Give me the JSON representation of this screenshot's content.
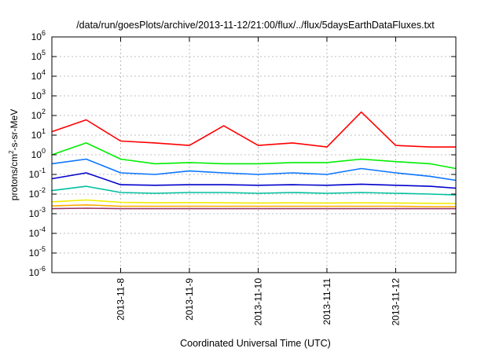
{
  "chart_data": {
    "type": "line",
    "title": "/data/run/goesPlots/archive/2013-11-12/21:00/flux/../flux/5daysEarthDataFluxes.txt",
    "xlabel": "Coordinated Universal Time (UTC)",
    "ylabel": {
      "base": "protons/cm",
      "sup": "2",
      "rest": "-s-sr-MeV"
    },
    "y_scale": "log",
    "ylim": [
      1e-06,
      1000000.0
    ],
    "xlim": [
      "2013-11-07 00:00",
      "2013-11-12 21:00"
    ],
    "grid": true,
    "x_ticks": [
      "2013-11-8",
      "2013-11-9",
      "2013-11-10",
      "2013-11-11",
      "2013-11-12"
    ],
    "y_ticks": [
      {
        "base": "10",
        "exp": "-6"
      },
      {
        "base": "10",
        "exp": "-5"
      },
      {
        "base": "10",
        "exp": "-4"
      },
      {
        "base": "10",
        "exp": "-3"
      },
      {
        "base": "10",
        "exp": "-2"
      },
      {
        "base": "10",
        "exp": "-1"
      },
      {
        "base": "10",
        "exp": "0"
      },
      {
        "base": "10",
        "exp": "1"
      },
      {
        "base": "10",
        "exp": "2"
      },
      {
        "base": "10",
        "exp": "3"
      },
      {
        "base": "10",
        "exp": "4"
      },
      {
        "base": "10",
        "exp": "5"
      },
      {
        "base": "10",
        "exp": "6"
      }
    ],
    "x_dates": [
      "2013-11-07 00:00",
      "2013-11-07 12:00",
      "2013-11-08 00:00",
      "2013-11-08 12:00",
      "2013-11-09 00:00",
      "2013-11-09 12:00",
      "2013-11-10 00:00",
      "2013-11-10 12:00",
      "2013-11-11 00:00",
      "2013-11-11 12:00",
      "2013-11-12 00:00",
      "2013-11-12 12:00",
      "2013-11-12 21:00"
    ],
    "series": [
      {
        "color": "#ff0000",
        "values": [
          15,
          60,
          5,
          4,
          3,
          30,
          3,
          4,
          2.5,
          150,
          3,
          2.5,
          2.5
        ]
      },
      {
        "color": "#00ee00",
        "values": [
          1.0,
          4.0,
          0.6,
          0.35,
          0.4,
          0.35,
          0.35,
          0.4,
          0.4,
          0.6,
          0.45,
          0.35,
          0.2
        ]
      },
      {
        "color": "#0a74ff",
        "values": [
          0.35,
          0.6,
          0.12,
          0.1,
          0.15,
          0.12,
          0.1,
          0.12,
          0.1,
          0.2,
          0.12,
          0.08,
          0.05
        ]
      },
      {
        "color": "#0000cc",
        "values": [
          0.06,
          0.12,
          0.03,
          0.028,
          0.03,
          0.03,
          0.028,
          0.03,
          0.028,
          0.032,
          0.028,
          0.025,
          0.02
        ]
      },
      {
        "color": "#00c0a0",
        "values": [
          0.015,
          0.025,
          0.012,
          0.011,
          0.012,
          0.012,
          0.011,
          0.012,
          0.011,
          0.012,
          0.011,
          0.01,
          0.009
        ]
      },
      {
        "color": "#eeee00",
        "values": [
          0.004,
          0.005,
          0.0038,
          0.0036,
          0.0037,
          0.0036,
          0.0035,
          0.0036,
          0.0035,
          0.0036,
          0.0035,
          0.0034,
          0.0033
        ]
      },
      {
        "color": "#ffaa00",
        "values": [
          0.0025,
          0.0028,
          0.0024,
          0.0024,
          0.0024,
          0.0024,
          0.0024,
          0.0024,
          0.0024,
          0.0024,
          0.0024,
          0.0023,
          0.0023
        ]
      },
      {
        "color": "#993366",
        "values": [
          0.0018,
          0.0019,
          0.0018,
          0.0018,
          0.0018,
          0.0018,
          0.0018,
          0.0018,
          0.0018,
          0.0018,
          0.0018,
          0.0018,
          0.0018
        ]
      }
    ]
  }
}
